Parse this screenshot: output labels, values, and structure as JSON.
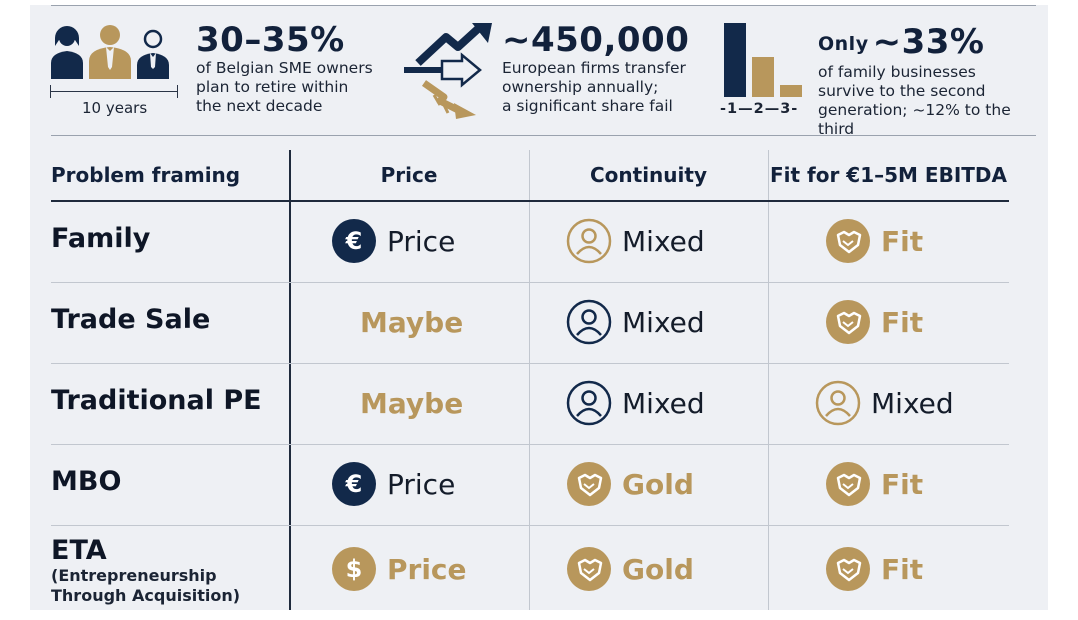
{
  "stats": [
    {
      "value": "30–35%",
      "text": [
        "of Belgian SME owners",
        "plan to retire within",
        "the next decade"
      ],
      "sublabel": "10 years"
    },
    {
      "value": "~450,000",
      "text": [
        "European firms transfer",
        "ownership annually;",
        "a significant share fail"
      ]
    },
    {
      "prefix": "Only",
      "value": "~33%",
      "text": [
        "of family businesses",
        "survive to the second",
        "generation; ~12% to the third"
      ],
      "bar_labels": "-1—2—3-",
      "bar_values": [
        3,
        1.6,
        0.5
      ]
    }
  ],
  "table": {
    "headers": [
      "Problem framing",
      "Price",
      "Continuity",
      "Fit for €1–5M EBITDA"
    ],
    "rows": [
      {
        "label": "Family",
        "cells": [
          {
            "icon": "euro-icon",
            "style": "navy",
            "text": "Price"
          },
          {
            "icon": "person-icon",
            "style": "outline-gold",
            "text": "Mixed"
          },
          {
            "icon": "handshake-icon",
            "style": "gold",
            "text": "Fit"
          }
        ]
      },
      {
        "label": "Trade Sale",
        "cells": [
          {
            "icon": "",
            "style": "none",
            "text": "Maybe"
          },
          {
            "icon": "person-icon",
            "style": "outline-navy",
            "text": "Mixed"
          },
          {
            "icon": "handshake-icon",
            "style": "gold",
            "text": "Fit"
          }
        ]
      },
      {
        "label": "Traditional PE",
        "cells": [
          {
            "icon": "",
            "style": "none",
            "text": "Maybe"
          },
          {
            "icon": "person-icon",
            "style": "outline-navy",
            "text": "Mixed"
          },
          {
            "icon": "person-icon",
            "style": "outline-gold",
            "text": "Mixed"
          }
        ]
      },
      {
        "label": "MBO",
        "cells": [
          {
            "icon": "euro-icon",
            "style": "navy",
            "text": "Price"
          },
          {
            "icon": "handshake-icon",
            "style": "gold",
            "text": "Gold"
          },
          {
            "icon": "handshake-icon",
            "style": "gold",
            "text": "Fit"
          }
        ]
      },
      {
        "label": "ETA",
        "sublabel": [
          "(Entrepreneurship",
          "Through Acquisition)"
        ],
        "cells": [
          {
            "icon": "dollar-icon",
            "style": "gold",
            "text": "Price"
          },
          {
            "icon": "handshake-icon",
            "style": "gold",
            "text": "Gold"
          },
          {
            "icon": "handshake-icon",
            "style": "gold",
            "text": "Fit"
          }
        ]
      }
    ]
  },
  "colors": {
    "navy": "#12294a",
    "gold": "#b8975c",
    "ink": "#12213b"
  }
}
